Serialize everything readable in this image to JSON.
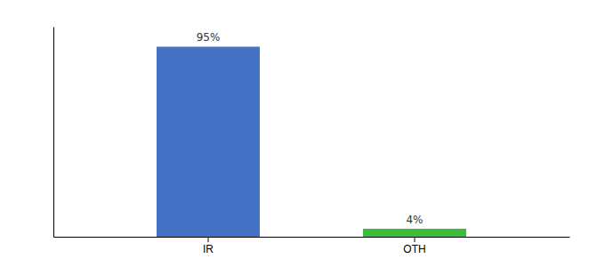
{
  "chart_data": {
    "type": "bar",
    "categories": [
      "IR",
      "OTH"
    ],
    "values": [
      95,
      4
    ],
    "value_labels": [
      "95%",
      "4%"
    ],
    "colors": [
      "#4472c4",
      "#3dbb3d"
    ],
    "ylim": [
      0,
      105
    ],
    "data_labels": true,
    "tick_labels": "x",
    "grid": false
  }
}
